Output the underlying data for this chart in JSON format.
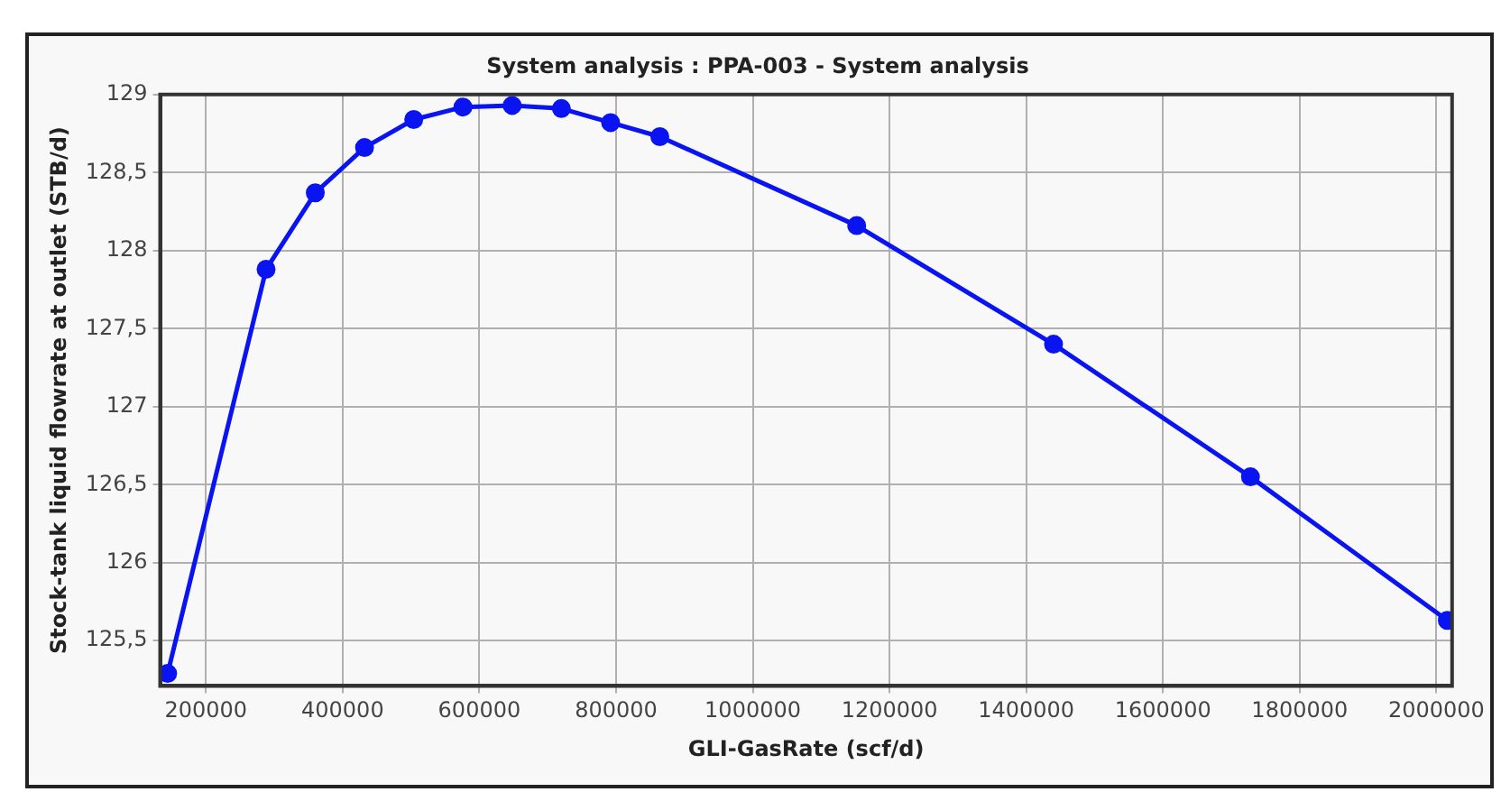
{
  "chart_data": {
    "type": "line",
    "title": "System analysis : PPA-003 - System analysis",
    "xlabel": "GLI-GasRate (scf/d)",
    "ylabel": "Stock-tank liquid flowrate at outlet (STB/d)",
    "x": [
      144000,
      288000,
      360000,
      432000,
      504000,
      576000,
      648000,
      720000,
      792000,
      864000,
      1152000,
      1440000,
      1728000,
      2016000
    ],
    "series": [
      {
        "color": "#0a14f0",
        "values": [
          125.29,
          127.88,
          128.37,
          128.66,
          128.84,
          128.92,
          128.93,
          128.91,
          128.82,
          128.73,
          128.16,
          127.4,
          126.55,
          125.63
        ]
      }
    ],
    "xlim": [
      133000,
      2023000
    ],
    "xticks": [
      200000,
      400000,
      600000,
      800000,
      1000000,
      1200000,
      1400000,
      1600000,
      1800000,
      2000000
    ],
    "ylim": [
      125.21,
      129
    ],
    "yticks": [
      {
        "value": 125.5,
        "label": "125,5"
      },
      {
        "value": 126,
        "label": "126"
      },
      {
        "value": 126.5,
        "label": "126,5"
      },
      {
        "value": 127,
        "label": "127"
      },
      {
        "value": 127.5,
        "label": "127,5"
      },
      {
        "value": 128,
        "label": "128"
      },
      {
        "value": 128.5,
        "label": "128,5"
      },
      {
        "value": 129,
        "label": "129"
      }
    ],
    "grid": true,
    "legend": false,
    "marker": "circle",
    "line_style": "solid"
  }
}
